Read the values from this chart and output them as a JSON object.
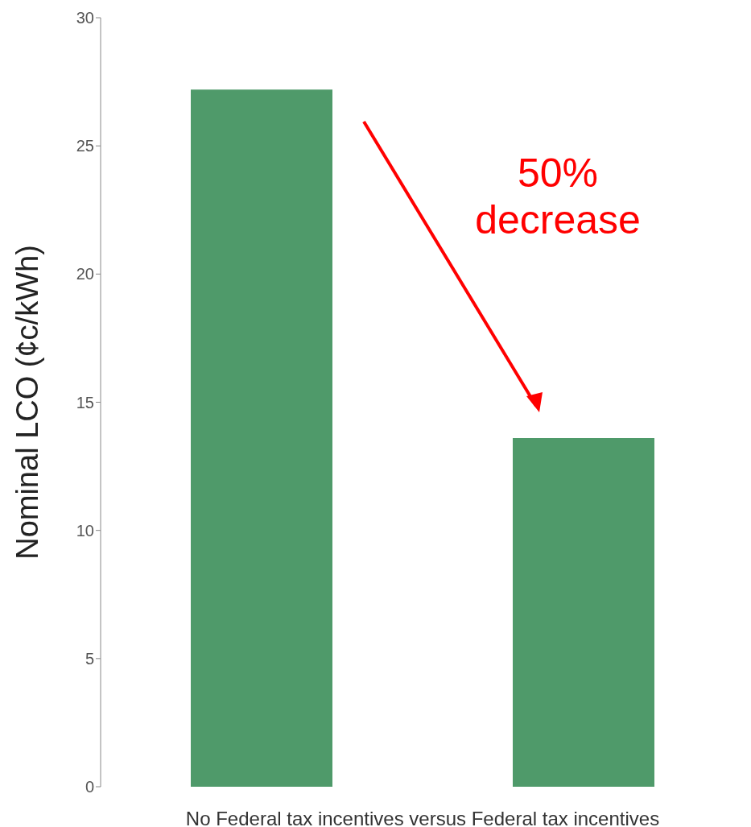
{
  "chart_data": {
    "type": "bar",
    "ylabel": "Nominal LCO (¢c/kWh)",
    "xlabel": "No Federal tax incentives versus Federal tax incentives",
    "categories": [
      null,
      null
    ],
    "values": [
      27.2,
      13.6
    ],
    "color": "#4f9a6a",
    "ylim": [
      0,
      30
    ],
    "yticks": [
      0,
      5,
      10,
      15,
      20,
      25,
      30
    ],
    "grid": false,
    "legend": false,
    "annotations": [
      "50% decrease"
    ]
  }
}
